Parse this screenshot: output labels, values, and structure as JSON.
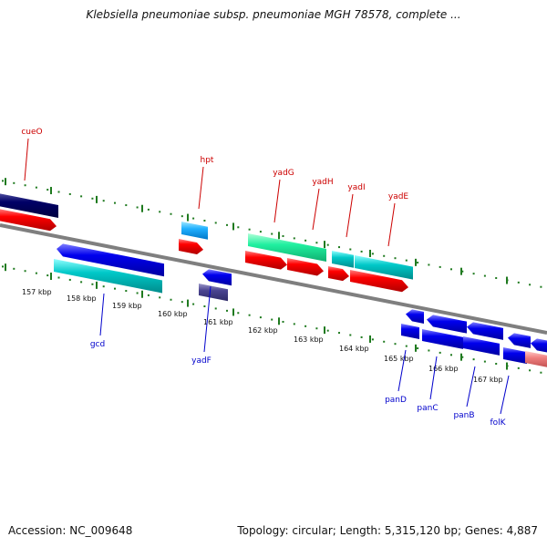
{
  "title": "Klebsiella pneumoniae subsp. pneumoniae MGH 78578, complete ...",
  "footer": {
    "accession": "Accession: NC_009648",
    "summary": "Topology: circular; Length: 5,315,120 bp; Genes: 4,887"
  },
  "colors": {
    "backbone": "#7f7f7f",
    "tick": "#1f7a1f",
    "top_label": "#cc0000",
    "bottom_label": "#0000cc"
  },
  "kbp_ticks": [
    "157 kbp",
    "158 kbp",
    "159 kbp",
    "160 kbp",
    "161 kbp",
    "162 kbp",
    "163 kbp",
    "164 kbp",
    "165 kbp",
    "166 kbp",
    "167 kbp"
  ],
  "genes_top": [
    "cueO",
    "hpt",
    "yadG",
    "yadH",
    "yadI",
    "yadE"
  ],
  "genes_bottom": [
    "gcd",
    "yadF",
    "panD",
    "panC",
    "panB",
    "folK"
  ]
}
